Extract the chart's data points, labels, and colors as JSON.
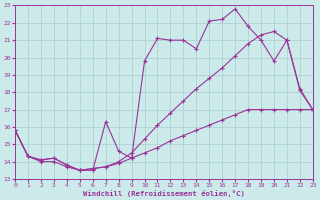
{
  "xlabel": "Windchill (Refroidissement éolien,°C)",
  "bg_color": "#cceaea",
  "grid_color": "#aacccc",
  "line_color": "#993399",
  "xmin": 0,
  "xmax": 23,
  "ymin": 13,
  "ymax": 23,
  "yticks": [
    13,
    14,
    15,
    16,
    17,
    18,
    19,
    20,
    21,
    22,
    23
  ],
  "xticks": [
    0,
    1,
    2,
    3,
    4,
    5,
    6,
    7,
    8,
    9,
    10,
    11,
    12,
    13,
    14,
    15,
    16,
    17,
    18,
    19,
    20,
    21,
    22,
    23
  ],
  "line1_x": [
    0,
    1,
    2,
    3,
    4,
    5,
    6,
    7,
    8,
    9,
    10,
    11,
    12,
    13,
    14,
    15,
    16,
    17,
    18,
    19,
    20,
    21,
    22,
    23
  ],
  "line1_y": [
    15.8,
    14.3,
    14.0,
    14.0,
    13.7,
    13.5,
    13.5,
    16.3,
    14.6,
    14.2,
    19.8,
    21.1,
    21.0,
    21.0,
    20.5,
    22.1,
    22.2,
    22.8,
    21.8,
    21.0,
    19.8,
    21.0,
    18.1,
    17.0
  ],
  "line2_x": [
    0,
    1,
    2,
    3,
    4,
    5,
    6,
    7,
    8,
    9,
    10,
    11,
    12,
    13,
    14,
    15,
    16,
    17,
    18,
    19,
    20,
    21,
    22,
    23
  ],
  "line2_y": [
    15.8,
    14.3,
    14.1,
    14.2,
    13.8,
    13.5,
    13.6,
    13.7,
    13.9,
    14.2,
    14.5,
    14.8,
    15.2,
    15.5,
    15.8,
    16.1,
    16.4,
    16.7,
    17.0,
    17.0,
    17.0,
    17.0,
    17.0,
    17.0
  ],
  "line3_x": [
    0,
    1,
    2,
    3,
    4,
    5,
    6,
    7,
    8,
    9,
    10,
    11,
    12,
    13,
    14,
    15,
    16,
    17,
    18,
    19,
    20,
    21,
    22,
    23
  ],
  "line3_y": [
    15.8,
    14.3,
    14.1,
    14.2,
    13.8,
    13.5,
    13.6,
    13.7,
    14.0,
    14.5,
    15.3,
    16.1,
    16.8,
    17.5,
    18.2,
    18.8,
    19.4,
    20.1,
    20.8,
    21.3,
    21.5,
    21.0,
    18.2,
    17.0
  ]
}
